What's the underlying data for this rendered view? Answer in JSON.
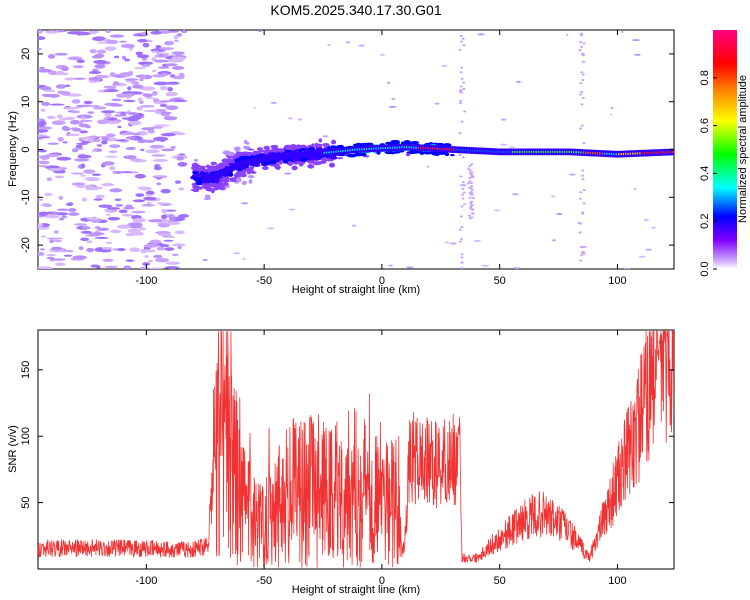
{
  "figure_title": "KOM5.2025.340.17.30.G01",
  "colors": {
    "snr_line": "#f03232",
    "axis": "#000000",
    "background": "#ffffff"
  },
  "chart_data": [
    {
      "type": "heatmap",
      "name": "spectrogram",
      "xlabel": "Height of straight line (km)",
      "ylabel": "Frequency (Hz)",
      "xlim": [
        -146,
        124
      ],
      "ylim": [
        -25,
        25
      ],
      "xticks": [
        -100,
        -50,
        0,
        50,
        100
      ],
      "yticks": [
        -20,
        -10,
        0,
        10,
        20
      ],
      "colorbar": {
        "label": "Normalized spectral amplitude",
        "range": [
          0,
          1
        ],
        "ticks": [
          "0.0",
          "0.2",
          "0.4",
          "0.6",
          "0.8"
        ],
        "tick_values": [
          0.0,
          0.2,
          0.4,
          0.6,
          0.8
        ]
      },
      "ridge": {
        "description_points": [
          {
            "x": -72,
            "freq": -6
          },
          {
            "x": -60,
            "freq": -3
          },
          {
            "x": -45,
            "freq": -1.5
          },
          {
            "x": -30,
            "freq": -1
          },
          {
            "x": -10,
            "freq": 0
          },
          {
            "x": 10,
            "freq": 0.5
          },
          {
            "x": 30,
            "freq": 0
          },
          {
            "x": 50,
            "freq": -0.5
          },
          {
            "x": 80,
            "freq": -0.5
          },
          {
            "x": 100,
            "freq": -1
          },
          {
            "x": 124,
            "freq": -0.5
          }
        ]
      }
    },
    {
      "type": "line",
      "name": "snr",
      "xlabel": "Height of straight line (km)",
      "ylabel": "SNR (v/v)",
      "xlim": [
        -146,
        124
      ],
      "ylim": [
        0,
        180
      ],
      "xticks": [
        -100,
        -50,
        0,
        50,
        100
      ],
      "yticks": [
        50,
        100,
        150
      ],
      "series": [
        {
          "name": "SNR",
          "envelope_points": [
            {
              "x": -146,
              "y": 15
            },
            {
              "x": -110,
              "y": 15
            },
            {
              "x": -80,
              "y": 14
            },
            {
              "x": -74,
              "y": 18
            },
            {
              "x": -71,
              "y": 80
            },
            {
              "x": -68,
              "y": 120
            },
            {
              "x": -60,
              "y": 45
            },
            {
              "x": -52,
              "y": 30
            },
            {
              "x": -45,
              "y": 45
            },
            {
              "x": -35,
              "y": 55
            },
            {
              "x": -25,
              "y": 50
            },
            {
              "x": -15,
              "y": 55
            },
            {
              "x": -5,
              "y": 55
            },
            {
              "x": 5,
              "y": 45
            },
            {
              "x": 9,
              "y": 10
            },
            {
              "x": 12,
              "y": 80
            },
            {
              "x": 22,
              "y": 75
            },
            {
              "x": 33,
              "y": 80
            },
            {
              "x": 34,
              "y": 8
            },
            {
              "x": 40,
              "y": 8
            },
            {
              "x": 50,
              "y": 22
            },
            {
              "x": 60,
              "y": 35
            },
            {
              "x": 68,
              "y": 40
            },
            {
              "x": 78,
              "y": 30
            },
            {
              "x": 88,
              "y": 8
            },
            {
              "x": 95,
              "y": 40
            },
            {
              "x": 105,
              "y": 85
            },
            {
              "x": 112,
              "y": 120
            },
            {
              "x": 116,
              "y": 155
            },
            {
              "x": 124,
              "y": 160
            }
          ]
        }
      ]
    }
  ]
}
